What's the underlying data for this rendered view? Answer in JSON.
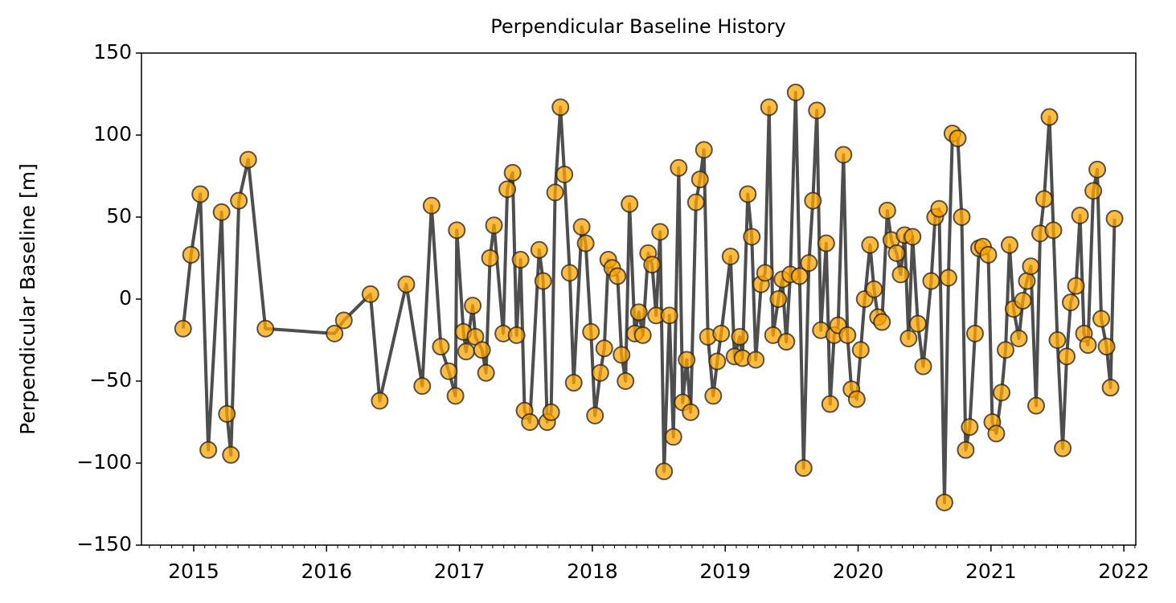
{
  "chart_data": {
    "type": "line",
    "title": "Perpendicular Baseline History",
    "y_label": "Perpendicular Baseline [m]",
    "x": [
      2014.92,
      2014.98,
      2015.05,
      2015.11,
      2015.21,
      2015.25,
      2015.28,
      2015.34,
      2015.41,
      2015.54,
      2016.06,
      2016.13,
      2016.33,
      2016.4,
      2016.6,
      2016.72,
      2016.79,
      2016.86,
      2016.92,
      2016.97,
      2016.98,
      2017.03,
      2017.05,
      2017.1,
      2017.12,
      2017.17,
      2017.2,
      2017.23,
      2017.26,
      2017.33,
      2017.36,
      2017.4,
      2017.43,
      2017.46,
      2017.49,
      2017.53,
      2017.6,
      2017.63,
      2017.66,
      2017.69,
      2017.72,
      2017.76,
      2017.79,
      2017.83,
      2017.86,
      2017.92,
      2017.95,
      2017.99,
      2018.02,
      2018.06,
      2018.09,
      2018.12,
      2018.15,
      2018.19,
      2018.22,
      2018.25,
      2018.28,
      2018.32,
      2018.35,
      2018.38,
      2018.42,
      2018.45,
      2018.48,
      2018.51,
      2018.54,
      2018.58,
      2018.61,
      2018.65,
      2018.68,
      2018.71,
      2018.74,
      2018.78,
      2018.81,
      2018.84,
      2018.87,
      2018.91,
      2018.94,
      2018.97,
      2019.04,
      2019.07,
      2019.11,
      2019.13,
      2019.17,
      2019.2,
      2019.23,
      2019.27,
      2019.3,
      2019.33,
      2019.36,
      2019.4,
      2019.43,
      2019.46,
      2019.49,
      2019.53,
      2019.56,
      2019.59,
      2019.63,
      2019.66,
      2019.69,
      2019.72,
      2019.76,
      2019.79,
      2019.82,
      2019.85,
      2019.89,
      2019.92,
      2019.95,
      2019.99,
      2020.02,
      2020.05,
      2020.09,
      2020.12,
      2020.15,
      2020.18,
      2020.22,
      2020.25,
      2020.29,
      2020.32,
      2020.35,
      2020.38,
      2020.41,
      2020.45,
      2020.49,
      2020.55,
      2020.58,
      2020.61,
      2020.65,
      2020.68,
      2020.71,
      2020.75,
      2020.78,
      2020.81,
      2020.84,
      2020.88,
      2020.91,
      2020.94,
      2020.98,
      2021.01,
      2021.04,
      2021.08,
      2021.11,
      2021.14,
      2021.17,
      2021.21,
      2021.24,
      2021.27,
      2021.3,
      2021.34,
      2021.37,
      2021.4,
      2021.44,
      2021.47,
      2021.5,
      2021.54,
      2021.57,
      2021.6,
      2021.64,
      2021.67,
      2021.7,
      2021.73,
      2021.77,
      2021.8,
      2021.83,
      2021.87,
      2021.9,
      2021.93
    ],
    "series": [
      {
        "color": "#444444",
        "marker_color": "#ffa500",
        "values": [
          -18,
          27,
          64,
          -92,
          53,
          -70,
          -95,
          60,
          85,
          -18,
          -21,
          -13,
          3,
          -62,
          9,
          -53,
          57,
          -29,
          -44,
          -59,
          42,
          -20,
          -32,
          -4,
          -23,
          -31,
          -45,
          25,
          45,
          -21,
          67,
          77,
          -22,
          24,
          -68,
          -75,
          30,
          11,
          -75,
          -69,
          65,
          117,
          76,
          16,
          -51,
          44,
          34,
          -20,
          -71,
          -45,
          -30,
          24,
          19,
          14,
          -34,
          -50,
          58,
          -21,
          -8,
          -22,
          28,
          21,
          -10,
          41,
          -105,
          -10,
          -84,
          80,
          -63,
          -37,
          -69,
          59,
          73,
          91,
          -23,
          -59,
          -38,
          -21,
          26,
          -35,
          -23,
          -36,
          64,
          38,
          -37,
          9,
          16,
          117,
          -22,
          0,
          12,
          -26,
          15,
          126,
          14,
          -103,
          22,
          60,
          115,
          -19,
          34,
          -64,
          -22,
          -16,
          88,
          -22,
          -55,
          -61,
          -31,
          0,
          33,
          6,
          -11,
          -14,
          54,
          36,
          28,
          15,
          39,
          -24,
          38,
          -15,
          -41,
          11,
          50,
          55,
          -124,
          13,
          101,
          98,
          50,
          -92,
          -78,
          -21,
          31,
          32,
          27,
          -75,
          -82,
          -57,
          -31,
          33,
          -6,
          -24,
          -1,
          11,
          20,
          -65,
          40,
          61,
          111,
          42,
          -25,
          -91,
          -35,
          -2,
          8,
          51,
          -21,
          -28,
          66,
          79,
          -12,
          -29,
          -54,
          49
        ]
      }
    ],
    "xlim": [
      2014.607,
      2022.09
    ],
    "xticks": [
      2015,
      2016,
      2017,
      2018,
      2019,
      2020,
      2021,
      2022
    ],
    "ylim": [
      -150,
      150
    ],
    "yticks": [
      {
        "value": -150,
        "label": "−150"
      },
      {
        "value": -100,
        "label": "−100"
      },
      {
        "value": -50,
        "label": "−50"
      },
      0,
      50,
      100,
      150
    ]
  }
}
